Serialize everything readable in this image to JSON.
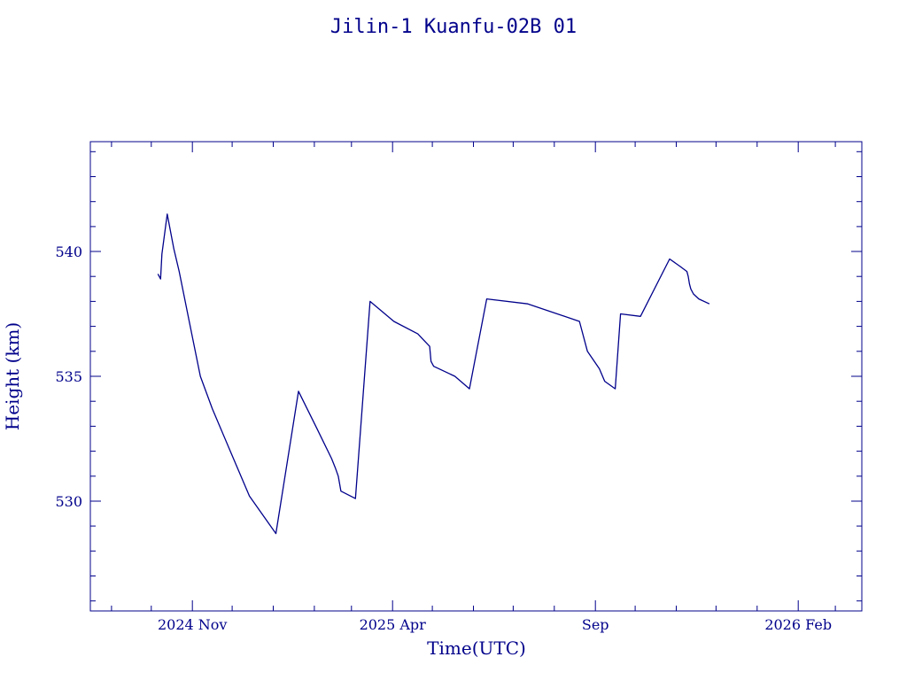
{
  "chart_data": {
    "type": "line",
    "title": "Jilin-1 Kuanfu-02B 01",
    "xlabel": "Time(UTC)",
    "ylabel": "Height (km)",
    "xlim": [
      "2024-08-16",
      "2026-03-21"
    ],
    "ylim": [
      525.6,
      544.4
    ],
    "x_tick_labels": [
      {
        "date": "2024-11-01",
        "label": "2024 Nov"
      },
      {
        "date": "2025-04-01",
        "label": "2025 Apr"
      },
      {
        "date": "2025-09-01",
        "label": "Sep"
      },
      {
        "date": "2026-02-01",
        "label": "2026 Feb"
      }
    ],
    "x_minor_ticks": [
      "2024-09-01",
      "2024-10-01",
      "2024-11-01",
      "2024-12-01",
      "2025-01-01",
      "2025-02-01",
      "2025-03-01",
      "2025-04-01",
      "2025-05-01",
      "2025-06-01",
      "2025-07-01",
      "2025-08-01",
      "2025-09-01",
      "2025-10-01",
      "2025-11-01",
      "2025-12-01",
      "2026-01-01",
      "2026-02-01",
      "2026-03-01"
    ],
    "y_tick_labels": [
      530,
      535,
      540
    ],
    "y_minor_ticks": [
      526,
      527,
      528,
      529,
      530,
      531,
      532,
      533,
      534,
      535,
      536,
      537,
      538,
      539,
      540,
      541,
      542,
      543,
      544
    ],
    "grid": false,
    "color": "#00008b",
    "series": [
      {
        "x": [
          "2024-10-06",
          "2024-10-08",
          "2024-10-09",
          "2024-10-13",
          "2024-10-18",
          "2024-10-22",
          "2024-10-30",
          "2024-11-07",
          "2024-11-16",
          "2024-11-28",
          "2024-12-14",
          "2025-01-03",
          "2025-01-20",
          "2025-02-03",
          "2025-02-14",
          "2025-02-17",
          "2025-02-19",
          "2025-02-20",
          "2025-02-21",
          "2025-03-04",
          "2025-03-15",
          "2025-04-02",
          "2025-04-20",
          "2025-04-29",
          "2025-04-30",
          "2025-05-02",
          "2025-05-18",
          "2025-05-29",
          "2025-06-11",
          "2025-07-12",
          "2025-08-20",
          "2025-08-26",
          "2025-09-04",
          "2025-09-08",
          "2025-09-16",
          "2025-09-20",
          "2025-10-05",
          "2025-10-27",
          "2025-11-04",
          "2025-11-09",
          "2025-11-10",
          "2025-11-11",
          "2025-11-12",
          "2025-11-14",
          "2025-11-18",
          "2025-11-26"
        ],
        "y": [
          539.1,
          538.9,
          539.9,
          541.5,
          540.1,
          539.2,
          537.1,
          535.0,
          533.7,
          532.2,
          530.2,
          528.7,
          534.4,
          532.9,
          531.7,
          531.3,
          531.0,
          530.7,
          530.4,
          530.1,
          538.0,
          537.2,
          536.7,
          536.2,
          535.6,
          535.4,
          535.0,
          534.5,
          538.1,
          537.9,
          537.2,
          536.0,
          535.3,
          534.8,
          534.5,
          537.5,
          537.4,
          539.7,
          539.4,
          539.2,
          539.0,
          538.7,
          538.5,
          538.3,
          538.1,
          537.9
        ]
      }
    ]
  }
}
